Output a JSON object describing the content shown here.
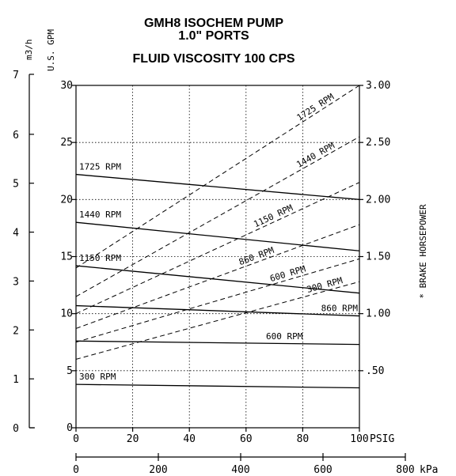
{
  "chart_data": {
    "type": "line",
    "title_lines": [
      "GMH8 ISOCHEM PUMP",
      "1.0\" PORTS",
      "FLUID VISCOSITY 100 CPS"
    ],
    "x_axis": {
      "label": "PSIG",
      "min": 0,
      "max": 100,
      "ticks": [
        0,
        20,
        40,
        60,
        80,
        100
      ]
    },
    "x2_axis": {
      "label": "kPa",
      "min": 0,
      "max": 800,
      "ticks": [
        0,
        200,
        400,
        600,
        800
      ]
    },
    "y_axis": {
      "label": "U.S. GPM",
      "min": 0,
      "max": 30,
      "ticks": [
        0,
        5,
        10,
        15,
        20,
        25,
        30
      ]
    },
    "y_metric_axis": {
      "label": "m3/h",
      "min": 0,
      "max": 7,
      "ticks": [
        0,
        1,
        2,
        3,
        4,
        5,
        6,
        7
      ]
    },
    "y2_axis": {
      "label": "* BRAKE HORSEPOWER",
      "min": 0,
      "max": 3,
      "ticks": [
        0.5,
        1,
        1.5,
        2,
        2.5,
        3
      ],
      "tick_labels": [
        ".50",
        "1.00",
        "1.50",
        "2.00",
        "2.50",
        "3.00"
      ]
    },
    "grid": true,
    "flow_series": [
      {
        "name": "1725 RPM",
        "x": [
          0,
          100
        ],
        "y": [
          22.2,
          20.0
        ]
      },
      {
        "name": "1440 RPM",
        "x": [
          0,
          100
        ],
        "y": [
          18.0,
          15.5
        ]
      },
      {
        "name": "1150 RPM",
        "x": [
          0,
          100
        ],
        "y": [
          14.2,
          11.8
        ]
      },
      {
        "name": "860 RPM",
        "x": [
          0,
          100
        ],
        "y": [
          10.7,
          9.8
        ]
      },
      {
        "name": "600 RPM",
        "x": [
          0,
          100
        ],
        "y": [
          7.6,
          7.3
        ]
      },
      {
        "name": "300 RPM",
        "x": [
          0,
          100
        ],
        "y": [
          3.8,
          3.5
        ]
      }
    ],
    "hp_series": [
      {
        "name": "1725 RPM",
        "x": [
          0,
          100
        ],
        "y": [
          1.4,
          3.0
        ]
      },
      {
        "name": "1440 RPM",
        "x": [
          0,
          100
        ],
        "y": [
          1.15,
          2.55
        ]
      },
      {
        "name": "1150 RPM",
        "x": [
          0,
          100
        ],
        "y": [
          1.0,
          2.15
        ]
      },
      {
        "name": "860 RPM",
        "x": [
          0,
          100
        ],
        "y": [
          0.87,
          1.78
        ]
      },
      {
        "name": "600 RPM",
        "x": [
          0,
          100
        ],
        "y": [
          0.75,
          1.48
        ]
      },
      {
        "name": "300 RPM",
        "x": [
          0,
          100
        ],
        "y": [
          0.6,
          1.28
        ]
      }
    ]
  }
}
